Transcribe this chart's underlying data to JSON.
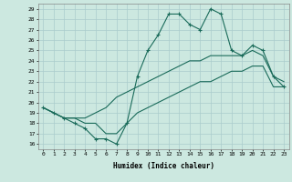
{
  "title": "",
  "xlabel": "Humidex (Indice chaleur)",
  "bg_color": "#cce8e0",
  "grid_color": "#aacccc",
  "line_color": "#1a6b5a",
  "xlim": [
    -0.5,
    23.5
  ],
  "ylim": [
    15.5,
    29.5
  ],
  "yticks": [
    16,
    17,
    18,
    19,
    20,
    21,
    22,
    23,
    24,
    25,
    26,
    27,
    28,
    29
  ],
  "xticks": [
    0,
    1,
    2,
    3,
    4,
    5,
    6,
    7,
    8,
    9,
    10,
    11,
    12,
    13,
    14,
    15,
    16,
    17,
    18,
    19,
    20,
    21,
    22,
    23
  ],
  "line1_x": [
    0,
    1,
    2,
    3,
    4,
    5,
    6,
    7,
    8,
    9,
    10,
    11,
    12,
    13,
    14,
    15,
    16,
    17,
    18,
    19,
    20,
    21,
    22,
    23
  ],
  "line1_y": [
    19.5,
    19.0,
    18.5,
    18.0,
    17.5,
    16.5,
    16.5,
    16.0,
    18.0,
    22.5,
    25.0,
    26.5,
    28.5,
    28.5,
    27.5,
    27.0,
    29.0,
    28.5,
    25.0,
    24.5,
    25.5,
    25.0,
    22.5,
    21.5
  ],
  "line2_x": [
    0,
    1,
    2,
    3,
    4,
    5,
    6,
    7,
    8,
    9,
    10,
    11,
    12,
    13,
    14,
    15,
    16,
    17,
    18,
    19,
    20,
    21,
    22,
    23
  ],
  "line2_y": [
    19.5,
    19.0,
    18.5,
    18.5,
    18.5,
    19.0,
    19.5,
    20.5,
    21.0,
    21.5,
    22.0,
    22.5,
    23.0,
    23.5,
    24.0,
    24.0,
    24.5,
    24.5,
    24.5,
    24.5,
    25.0,
    24.5,
    22.5,
    22.0
  ],
  "line3_x": [
    0,
    1,
    2,
    3,
    4,
    5,
    6,
    7,
    8,
    9,
    10,
    11,
    12,
    13,
    14,
    15,
    16,
    17,
    18,
    19,
    20,
    21,
    22,
    23
  ],
  "line3_y": [
    19.5,
    19.0,
    18.5,
    18.5,
    18.0,
    18.0,
    17.0,
    17.0,
    18.0,
    19.0,
    19.5,
    20.0,
    20.5,
    21.0,
    21.5,
    22.0,
    22.0,
    22.5,
    23.0,
    23.0,
    23.5,
    23.5,
    21.5,
    21.5
  ]
}
